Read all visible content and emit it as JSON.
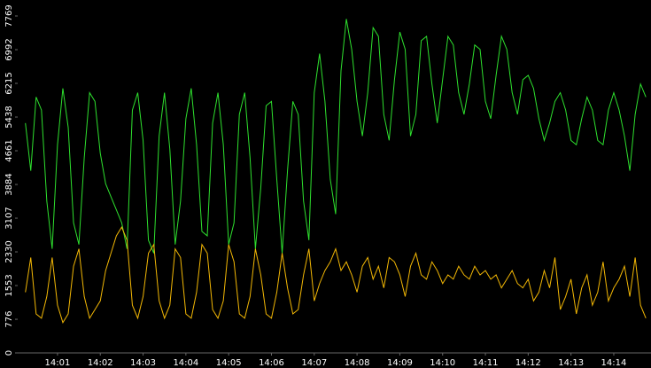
{
  "chart_data": {
    "type": "line",
    "x": [
      0.25,
      0.375,
      0.5,
      0.625,
      0.75,
      0.875,
      1,
      1.125,
      1.25,
      1.375,
      1.5,
      1.625,
      1.75,
      1.875,
      2,
      2.125,
      2.25,
      2.375,
      2.5,
      2.625,
      2.75,
      2.875,
      3,
      3.125,
      3.25,
      3.375,
      3.5,
      3.625,
      3.75,
      3.875,
      4,
      4.125,
      4.25,
      4.375,
      4.5,
      4.625,
      4.75,
      4.875,
      5,
      5.125,
      5.25,
      5.375,
      5.5,
      5.625,
      5.75,
      5.875,
      6,
      6.125,
      6.25,
      6.375,
      6.5,
      6.625,
      6.75,
      6.875,
      7,
      7.125,
      7.25,
      7.375,
      7.5,
      7.625,
      7.75,
      7.875,
      8,
      8.125,
      8.25,
      8.375,
      8.5,
      8.625,
      8.75,
      8.875,
      9,
      9.125,
      9.25,
      9.375,
      9.5,
      9.625,
      9.75,
      9.875,
      10,
      10.125,
      10.25,
      10.375,
      10.5,
      10.625,
      10.75,
      10.875,
      11,
      11.125,
      11.25,
      11.375,
      11.5,
      11.625,
      11.75,
      11.875,
      12,
      12.125,
      12.25,
      12.375,
      12.5,
      12.625,
      12.75,
      12.875,
      13,
      13.125,
      13.25,
      13.375,
      13.5,
      13.625,
      13.75,
      13.875,
      14,
      14.125,
      14.25,
      14.375,
      14.5,
      14.625,
      14.75
    ],
    "series": [
      {
        "color": "#2ee02e",
        "values": [
          5300,
          4200,
          5900,
          5600,
          3500,
          2400,
          4800,
          6100,
          5200,
          3000,
          2500,
          4500,
          6000,
          5800,
          4600,
          3900,
          3600,
          3300,
          3000,
          2400,
          5600,
          6000,
          4900,
          2600,
          2300,
          5000,
          6000,
          4700,
          2500,
          3500,
          5400,
          6100,
          4800,
          2800,
          2700,
          5300,
          6000,
          4800,
          2500,
          3000,
          5500,
          6000,
          4500,
          2400,
          3800,
          5700,
          5800,
          4000,
          2300,
          4200,
          5800,
          5500,
          3500,
          2600,
          6000,
          6900,
          5800,
          4000,
          3200,
          6500,
          7700,
          7000,
          5800,
          5000,
          6000,
          7500,
          7300,
          5500,
          4900,
          6300,
          7400,
          7000,
          5000,
          5500,
          7200,
          7300,
          6200,
          5300,
          6300,
          7300,
          7100,
          6000,
          5500,
          6200,
          7100,
          7000,
          5800,
          5400,
          6400,
          7300,
          7000,
          6000,
          5500,
          6300,
          6400,
          6100,
          5400,
          4900,
          5300,
          5800,
          6000,
          5600,
          4900,
          4800,
          5400,
          5900,
          5600,
          4900,
          4800,
          5600,
          6000,
          5600,
          5000,
          4200,
          5500,
          6200,
          5900
        ]
      },
      {
        "color": "#f2b705",
        "values": [
          1400,
          2200,
          900,
          800,
          1300,
          2200,
          1100,
          700,
          900,
          2000,
          2400,
          1300,
          800,
          1000,
          1200,
          1900,
          2300,
          2700,
          2900,
          2600,
          1100,
          800,
          1300,
          2300,
          2500,
          1200,
          800,
          1100,
          2400,
          2200,
          900,
          800,
          1400,
          2500,
          2300,
          1000,
          800,
          1200,
          2500,
          2100,
          900,
          800,
          1300,
          2400,
          1800,
          900,
          800,
          1400,
          2300,
          1500,
          900,
          1000,
          1800,
          2400,
          1200,
          1600,
          1900,
          2100,
          2400,
          1900,
          2100,
          1800,
          1400,
          2000,
          2200,
          1700,
          2000,
          1500,
          2200,
          2100,
          1800,
          1300,
          2000,
          2300,
          1800,
          1700,
          2100,
          1900,
          1600,
          1800,
          1700,
          2000,
          1800,
          1700,
          2000,
          1800,
          1900,
          1700,
          1800,
          1500,
          1700,
          1900,
          1600,
          1500,
          1700,
          1200,
          1400,
          1900,
          1500,
          2200,
          1000,
          1300,
          1700,
          900,
          1500,
          1800,
          1100,
          1400,
          2100,
          1200,
          1500,
          1700,
          2000,
          1300,
          2200,
          1100,
          800
        ]
      }
    ],
    "xlim": [
      0.07,
      14.87
    ],
    "xticks": [
      {
        "value": 1,
        "label": "14:01"
      },
      {
        "value": 2,
        "label": "14:02"
      },
      {
        "value": 3,
        "label": "14:03"
      },
      {
        "value": 4,
        "label": "14:04"
      },
      {
        "value": 5,
        "label": "14:05"
      },
      {
        "value": 6,
        "label": "14:06"
      },
      {
        "value": 7,
        "label": "14:07"
      },
      {
        "value": 8,
        "label": "14:08"
      },
      {
        "value": 9,
        "label": "14:09"
      },
      {
        "value": 10,
        "label": "14:10"
      },
      {
        "value": 11,
        "label": "14:11"
      },
      {
        "value": 12,
        "label": "14:12"
      },
      {
        "value": 13,
        "label": "14:13"
      },
      {
        "value": 14,
        "label": "14:14"
      }
    ],
    "ylim": [
      0,
      8137
    ],
    "yticks": [
      0,
      776,
      1553,
      2330,
      3107,
      3884,
      4661,
      5438,
      6215,
      6992,
      7769
    ]
  }
}
